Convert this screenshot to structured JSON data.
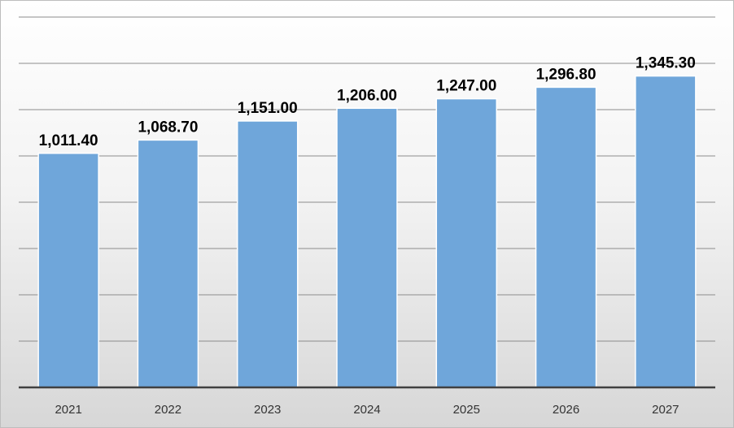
{
  "chart_data": {
    "type": "bar",
    "categories": [
      "2021",
      "2022",
      "2023",
      "2024",
      "2025",
      "2026",
      "2027"
    ],
    "values": [
      1011.4,
      1068.7,
      1151.0,
      1206.0,
      1247.0,
      1296.8,
      1345.3
    ],
    "data_labels": [
      "1,011.40",
      "1,068.70",
      "1,151.00",
      "1,206.00",
      "1,247.00",
      "1,296.80",
      "1,345.30"
    ],
    "title": "",
    "xlabel": "",
    "ylabel": "",
    "ylim": [
      0,
      1600
    ],
    "grid": true,
    "legend": "none",
    "colors": {
      "bar": "#6fa6da",
      "bar_edge": "#ffffff",
      "gridline": "#8c8c8c",
      "axis": "#404040"
    }
  }
}
